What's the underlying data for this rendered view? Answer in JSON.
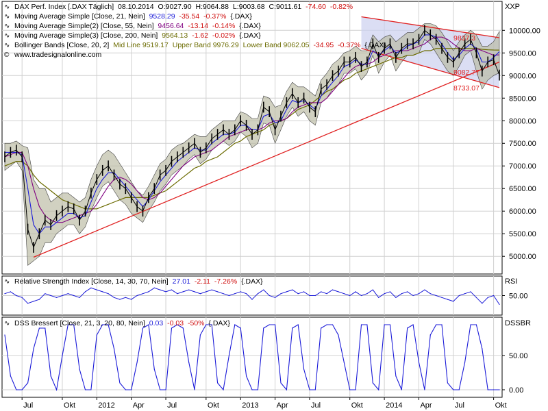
{
  "symbol_code": "XXP",
  "colors": {
    "price": "#000000",
    "ma21": "#1a1ad8",
    "ma55": "#800080",
    "ma200": "#6b6b00",
    "bollinger_fill": "#b8b8a0",
    "trendline": "#e02020",
    "channel_fill": "#ccd0f0",
    "indicator": "#1a1ad8",
    "negative_text": "#d01010",
    "grid": "#d0d0d0"
  },
  "legend": {
    "price": {
      "name": "DAX Perf. Index [.DAX  Täglich]",
      "date": "08.10.2014",
      "open": "O:9027.90",
      "high": "H:9064.88",
      "low": "L:9003.68",
      "close": "C:9011.61",
      "change": "-74.60",
      "change_pct": "-0.82%"
    },
    "ma1": {
      "name": "Moving Average Simple [Close, 21, Nein]",
      "value": "9528.29",
      "change": "-35.54",
      "change_pct": "-0.37%",
      "src": "{.DAX}"
    },
    "ma2": {
      "name": "Moving Average Simple(2) [Close, 55, Nein]",
      "value": "9456.64",
      "change": "-13.14",
      "change_pct": "-0.14%",
      "src": "{.DAX}"
    },
    "ma3": {
      "name": "Moving Average Simple(3) [Close, 200, Nein]",
      "value": "9564.13",
      "change": "-1.62",
      "change_pct": "-0.02%",
      "src": "{.DAX}"
    },
    "bb": {
      "name": "Bollinger Bands [Close, 20, 2]",
      "mid": "Mid Line 9519.17",
      "upper": "Upper Band 9976.29",
      "lower": "Lower Band 9062.05",
      "change": "-34.95",
      "change_pct": "-0.37%",
      "src": "{.DAX}"
    },
    "source": "www.tradesignalonline.com"
  },
  "rsi_legend": {
    "name": "Relative Strength Index [Close, 14, 30, 70, Nein]",
    "value": "27.01",
    "change": "-2.11",
    "change_pct": "-7.26%",
    "src": "{.DAX}",
    "axis_tag": "RSI"
  },
  "dss_legend": {
    "name": "DSS Bressert [Close, 21, 3, 20, 80, Nein]",
    "value": "0.03",
    "change": "-0.03",
    "change_pct": "-50%",
    "src": "{.DAX}",
    "axis_tag": "DSSBR"
  },
  "chart_data": [
    {
      "type": "line",
      "panel": "price",
      "y_ticks": [
        "5000.00",
        "5500.00",
        "6000.00",
        "6500.00",
        "7000.00",
        "7500.00",
        "8000.00",
        "8500.00",
        "9000.00",
        "9500.00",
        "10000.00"
      ],
      "y_tick_values": [
        5000,
        5500,
        6000,
        6500,
        7000,
        7500,
        8000,
        8500,
        9000,
        9500,
        10000
      ],
      "ylim": [
        4700,
        10550
      ],
      "x_ticks": [
        "Jul",
        "Okt",
        "2012",
        "Apr",
        "Jul",
        "Okt",
        "2013",
        "Apr",
        "Jul",
        "Okt",
        "2014",
        "Apr",
        "Jul",
        "Okt"
      ],
      "x_tick_index": [
        3,
        10,
        16,
        22,
        28,
        35,
        41,
        47,
        53,
        60,
        66,
        72,
        78,
        85
      ],
      "x_count": 87,
      "price_close": [
        7200,
        7300,
        7350,
        7200,
        5600,
        5200,
        5500,
        5800,
        5700,
        5900,
        6000,
        6100,
        6050,
        5800,
        6000,
        6400,
        6700,
        6900,
        7000,
        6800,
        6600,
        6500,
        6300,
        6100,
        6000,
        6300,
        6500,
        6800,
        6900,
        7100,
        7200,
        7300,
        7400,
        7500,
        7300,
        7400,
        7600,
        7700,
        7800,
        7700,
        7800,
        8000,
        7900,
        7700,
        7800,
        8300,
        8200,
        7800,
        8100,
        8400,
        8600,
        8400,
        8500,
        8300,
        8200,
        8700,
        8800,
        9000,
        9100,
        9300,
        9300,
        9400,
        9200,
        9300,
        9700,
        9400,
        9600,
        9700,
        9400,
        9600,
        9700,
        9700,
        9800,
        10000,
        9900,
        9800,
        9600,
        9400,
        9300,
        9500,
        9700,
        9800,
        9500,
        9100,
        9300,
        9350,
        9010
      ],
      "bollinger_upper": [
        7500,
        7500,
        7550,
        7450,
        7400,
        6700,
        6500,
        6500,
        6200,
        6300,
        6400,
        6400,
        6300,
        6200,
        6300,
        6700,
        7000,
        7250,
        7350,
        7250,
        7050,
        6850,
        6650,
        6450,
        6350,
        6550,
        6800,
        7050,
        7150,
        7350,
        7450,
        7500,
        7600,
        7700,
        7650,
        7650,
        7800,
        7900,
        8000,
        8000,
        8000,
        8200,
        8150,
        8050,
        8050,
        8550,
        8500,
        8300,
        8350,
        8650,
        8850,
        8750,
        8750,
        8650,
        8550,
        8900,
        9050,
        9250,
        9350,
        9500,
        9550,
        9650,
        9550,
        9550,
        9900,
        9750,
        9850,
        9900,
        9750,
        9850,
        9950,
        9950,
        10050,
        10150,
        10150,
        10100,
        9950,
        9750,
        9550,
        9750,
        9900,
        10000,
        9900,
        9650,
        9650,
        9750,
        9976
      ],
      "bollinger_lower": [
        6900,
        7000,
        7100,
        6900,
        4800,
        4900,
        5000,
        5300,
        5300,
        5500,
        5600,
        5700,
        5700,
        5500,
        5650,
        6000,
        6300,
        6550,
        6650,
        6450,
        6250,
        6150,
        5950,
        5850,
        5750,
        6000,
        6200,
        6450,
        6600,
        6800,
        6900,
        7000,
        7150,
        7250,
        7050,
        7150,
        7350,
        7450,
        7550,
        7450,
        7550,
        7750,
        7650,
        7400,
        7500,
        7950,
        7900,
        7500,
        7800,
        8100,
        8300,
        8100,
        8200,
        8000,
        7900,
        8400,
        8500,
        8700,
        8800,
        9050,
        9050,
        9150,
        8900,
        9050,
        9450,
        9050,
        9300,
        9450,
        9100,
        9300,
        9450,
        9450,
        9500,
        9800,
        9700,
        9500,
        9300,
        9100,
        9000,
        9200,
        9450,
        9550,
        9100,
        8700,
        8900,
        9000,
        9062
      ],
      "ma21": [
        7300,
        7300,
        7300,
        7250,
        6500,
        5700,
        5500,
        5650,
        5650,
        5750,
        5850,
        5950,
        5950,
        5850,
        5900,
        6200,
        6500,
        6700,
        6850,
        6850,
        6700,
        6550,
        6400,
        6250,
        6100,
        6250,
        6450,
        6650,
        6800,
        6950,
        7100,
        7200,
        7300,
        7400,
        7350,
        7350,
        7500,
        7600,
        7700,
        7700,
        7750,
        7900,
        7900,
        7800,
        7800,
        8100,
        8150,
        7950,
        8000,
        8250,
        8450,
        8400,
        8450,
        8350,
        8250,
        8550,
        8700,
        8850,
        9000,
        9200,
        9250,
        9350,
        9250,
        9250,
        9550,
        9450,
        9550,
        9650,
        9500,
        9550,
        9650,
        9700,
        9750,
        9900,
        9900,
        9850,
        9700,
        9500,
        9350,
        9450,
        9600,
        9700,
        9600,
        9300,
        9300,
        9400,
        9528
      ],
      "ma55": [
        7200,
        7250,
        7300,
        7300,
        7000,
        6500,
        6100,
        5900,
        5800,
        5750,
        5750,
        5800,
        5850,
        5900,
        5950,
        6000,
        6150,
        6350,
        6550,
        6700,
        6750,
        6700,
        6600,
        6450,
        6300,
        6250,
        6300,
        6400,
        6550,
        6700,
        6850,
        7000,
        7100,
        7200,
        7250,
        7300,
        7350,
        7450,
        7550,
        7650,
        7700,
        7750,
        7800,
        7800,
        7800,
        7850,
        7950,
        8000,
        8000,
        8050,
        8200,
        8300,
        8350,
        8400,
        8400,
        8400,
        8500,
        8650,
        8800,
        8950,
        9100,
        9200,
        9250,
        9250,
        9300,
        9400,
        9450,
        9500,
        9550,
        9550,
        9550,
        9600,
        9650,
        9700,
        9800,
        9850,
        9850,
        9800,
        9700,
        9600,
        9550,
        9550,
        9600,
        9550,
        9500,
        9450,
        9457
      ],
      "ma200": [
        7000,
        7050,
        7100,
        7100,
        7000,
        6800,
        6650,
        6550,
        6450,
        6350,
        6250,
        6200,
        6150,
        6100,
        6050,
        6050,
        6050,
        6100,
        6150,
        6200,
        6250,
        6300,
        6300,
        6300,
        6300,
        6300,
        6350,
        6400,
        6450,
        6550,
        6650,
        6750,
        6850,
        6950,
        7000,
        7100,
        7150,
        7200,
        7300,
        7400,
        7500,
        7550,
        7650,
        7700,
        7750,
        7800,
        7900,
        7950,
        8000,
        8050,
        8150,
        8250,
        8300,
        8350,
        8450,
        8550,
        8650,
        8700,
        8800,
        8900,
        8950,
        9050,
        9100,
        9150,
        9200,
        9250,
        9300,
        9350,
        9400,
        9400,
        9450,
        9450,
        9500,
        9550,
        9550,
        9600,
        9600,
        9600,
        9600,
        9600,
        9600,
        9600,
        9600,
        9580,
        9570,
        9565,
        9564
      ],
      "trendlines": [
        {
          "x": [
            5,
            86
          ],
          "y": [
            4980,
            9300
          ]
        },
        {
          "x": [
            62,
            86
          ],
          "y": [
            10300,
            9837.3
          ]
        },
        {
          "x": [
            62,
            86
          ],
          "y": [
            9600,
            8733.07
          ]
        }
      ],
      "value_labels": [
        "9837.3",
        "9082.77",
        "8733.07"
      ]
    },
    {
      "type": "line",
      "panel": "rsi",
      "y_ticks": [
        "50.00"
      ],
      "y_tick_values": [
        50
      ],
      "ylim": [
        10,
        90
      ],
      "rsi": [
        55,
        60,
        50,
        45,
        30,
        35,
        40,
        55,
        50,
        45,
        50,
        55,
        50,
        45,
        60,
        70,
        65,
        60,
        55,
        45,
        40,
        45,
        40,
        50,
        55,
        60,
        70,
        65,
        60,
        65,
        55,
        60,
        65,
        60,
        55,
        60,
        65,
        60,
        55,
        50,
        55,
        60,
        55,
        40,
        55,
        65,
        50,
        45,
        55,
        60,
        65,
        55,
        60,
        50,
        50,
        60,
        55,
        65,
        60,
        55,
        50,
        60,
        50,
        55,
        65,
        45,
        55,
        60,
        45,
        55,
        60,
        50,
        55,
        65,
        55,
        50,
        45,
        40,
        35,
        50,
        55,
        60,
        45,
        30,
        45,
        50,
        27
      ]
    },
    {
      "type": "line",
      "panel": "dss",
      "y_ticks": [
        "50.00",
        "0.00"
      ],
      "y_tick_values": [
        50,
        0
      ],
      "ylim": [
        -5,
        100
      ],
      "dss": [
        80,
        20,
        0,
        0,
        10,
        60,
        90,
        90,
        20,
        0,
        50,
        95,
        95,
        30,
        0,
        0,
        80,
        95,
        95,
        60,
        10,
        0,
        0,
        40,
        90,
        95,
        30,
        0,
        0,
        90,
        95,
        90,
        40,
        0,
        80,
        95,
        95,
        10,
        0,
        50,
        95,
        90,
        20,
        0,
        0,
        90,
        95,
        95,
        10,
        0,
        90,
        95,
        30,
        0,
        0,
        90,
        95,
        95,
        80,
        40,
        0,
        0,
        95,
        95,
        10,
        0,
        95,
        95,
        20,
        0,
        90,
        95,
        40,
        0,
        80,
        95,
        95,
        10,
        0,
        0,
        40,
        95,
        95,
        60,
        0,
        0,
        0.03
      ]
    }
  ]
}
